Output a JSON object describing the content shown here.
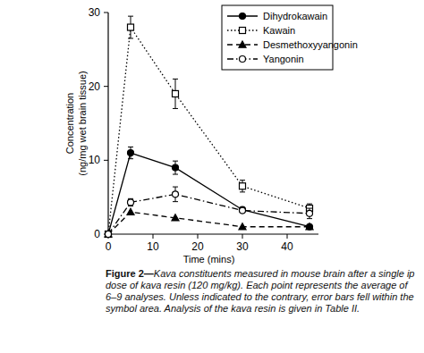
{
  "chart_data": {
    "type": "line",
    "xlabel": "Time (mins)",
    "ylabel": [
      "Concentration",
      "(ng/mg wet brain tissue)"
    ],
    "caption_label": "Figure 2—",
    "caption": "Kava constituents measured in mouse brain after a single ip dose of kava resin (120 mg/kg). Each point represents the average of 6–9 analyses. Unless indicated to the contrary, error bars fell within the symbol area. Analysis of the kava resin is given in Table II.",
    "x": [
      0,
      5,
      15,
      30,
      45
    ],
    "xlim": [
      0,
      47
    ],
    "xticks": [
      0,
      10,
      20,
      30,
      40
    ],
    "ylim": [
      0,
      30
    ],
    "yticks": [
      0,
      10,
      20,
      30
    ],
    "legend": "upper right",
    "grid": false,
    "series": [
      {
        "name": "Dihydrokawain",
        "color": "#000000",
        "marker": "filled-circle",
        "line_style": "solid",
        "values": [
          0,
          11,
          9,
          3.3,
          1
        ],
        "errors": [
          null,
          0.8,
          0.9,
          null,
          null
        ]
      },
      {
        "name": "Kawain",
        "color": "#000000",
        "marker": "open-square",
        "line_style": "dotted",
        "values": [
          0,
          28,
          19,
          6.5,
          3.5
        ],
        "errors": [
          null,
          1.5,
          2,
          0.8,
          0.6
        ]
      },
      {
        "name": "Desmethoxyyangonin",
        "color": "#000000",
        "marker": "filled-triangle",
        "line_style": "dashed",
        "values": [
          0,
          3,
          2.2,
          1,
          1
        ],
        "errors": [
          null,
          null,
          null,
          null,
          null
        ]
      },
      {
        "name": "Yangonin",
        "color": "#000000",
        "marker": "open-circle",
        "line_style": "dashdot",
        "values": [
          0,
          4.3,
          5.4,
          3.2,
          2.8
        ],
        "errors": [
          null,
          0.5,
          1,
          null,
          0.7
        ]
      }
    ]
  }
}
